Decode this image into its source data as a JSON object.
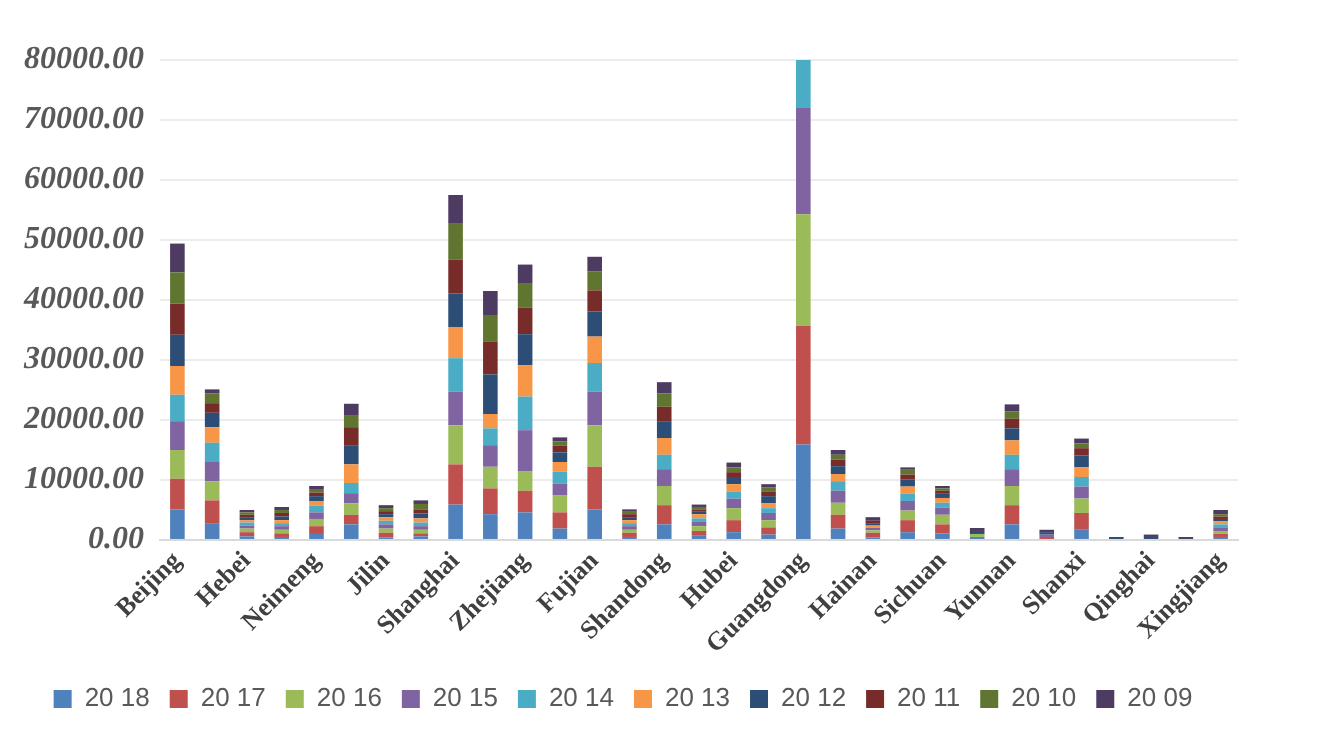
{
  "chart_data": {
    "type": "bar",
    "stacked": true,
    "categories": [
      "Beijing",
      null,
      "Hebei",
      null,
      "Neimeng",
      null,
      "Jilin",
      null,
      "Shanghai",
      null,
      "Zhejiang",
      null,
      "Fujian",
      null,
      "Shandong",
      null,
      "Hubei",
      null,
      "Guangdong",
      null,
      "Hainan",
      null,
      "Sichuan",
      null,
      "Yunnan",
      null,
      "Shanxi",
      null,
      "Qinghai",
      null,
      "Xingjiang"
    ],
    "series": [
      {
        "name": "20 18",
        "color": "#4f81bd",
        "values": [
          5100,
          2700,
          600,
          500,
          1000,
          2600,
          400,
          600,
          5900,
          4300,
          4600,
          1900,
          5100,
          500,
          2600,
          700,
          1300,
          900,
          15900,
          1900,
          400,
          1300,
          1100,
          500,
          2600,
          null,
          1700,
          null,
          null,
          null,
          500
        ]
      },
      {
        "name": "20 17",
        "color": "#c0504d",
        "values": [
          5100,
          3900,
          700,
          600,
          1300,
          1600,
          800,
          500,
          6700,
          4300,
          3600,
          2700,
          7100,
          700,
          3200,
          800,
          2000,
          1200,
          19800,
          2300,
          800,
          2000,
          1500,
          null,
          3200,
          500,
          2800,
          null,
          null,
          null,
          500
        ]
      },
      {
        "name": "20 16",
        "color": "#9bbb59",
        "values": [
          4800,
          3200,
          600,
          600,
          1200,
          1900,
          700,
          600,
          6500,
          3600,
          3200,
          2800,
          6900,
          500,
          3200,
          800,
          2000,
          1200,
          18600,
          2000,
          400,
          1600,
          1600,
          500,
          3200,
          null,
          2400,
          null,
          null,
          null,
          500
        ]
      },
      {
        "name": "20 15",
        "color": "#8064a2",
        "values": [
          4800,
          3200,
          500,
          600,
          1100,
          1700,
          700,
          600,
          5600,
          3600,
          6900,
          2000,
          5600,
          600,
          2800,
          800,
          1600,
          1200,
          17700,
          2000,
          400,
          1600,
          1200,
          null,
          2800,
          400,
          2000,
          null,
          null,
          null,
          500
        ]
      },
      {
        "name": "20 14",
        "color": "#4bacc6",
        "values": [
          4400,
          3200,
          500,
          500,
          1100,
          1700,
          600,
          600,
          5600,
          2800,
          5600,
          2000,
          4800,
          500,
          2400,
          500,
          1200,
          800,
          8000,
          1600,
          null,
          1200,
          800,
          null,
          2400,
          null,
          1600,
          null,
          null,
          null,
          600
        ]
      },
      {
        "name": "20 13",
        "color": "#f79646",
        "values": [
          4800,
          2600,
          400,
          500,
          800,
          3100,
          600,
          700,
          5200,
          2400,
          5200,
          1600,
          4400,
          500,
          2800,
          700,
          1200,
          800,
          null,
          1200,
          400,
          1200,
          800,
          null,
          2400,
          null,
          1600,
          null,
          null,
          null,
          500
        ]
      },
      {
        "name": "20 12",
        "color": "#2c4d75",
        "values": [
          5200,
          2400,
          500,
          600,
          800,
          3200,
          500,
          800,
          5600,
          6600,
          5200,
          1600,
          4200,
          500,
          2800,
          400,
          1200,
          1200,
          null,
          1300,
          400,
          1200,
          800,
          500,
          2000,
          400,
          2000,
          500,
          500,
          null,
          400
        ]
      },
      {
        "name": "20 11",
        "color": "#772c2a",
        "values": [
          5200,
          1600,
          400,
          600,
          600,
          3000,
          500,
          700,
          5600,
          5500,
          4400,
          1100,
          3500,
          500,
          2400,
          400,
          800,
          800,
          null,
          1100,
          400,
          800,
          400,
          null,
          1600,
          null,
          1200,
          null,
          null,
          null,
          400
        ]
      },
      {
        "name": "20 10",
        "color": "#5f7530",
        "values": [
          5200,
          1600,
          400,
          500,
          600,
          1900,
          500,
          900,
          6000,
          4400,
          4000,
          700,
          3200,
          400,
          2200,
          400,
          800,
          700,
          null,
          800,
          null,
          800,
          400,
          null,
          1200,
          null,
          800,
          null,
          null,
          null,
          400
        ]
      },
      {
        "name": "20 09",
        "color": "#4d3b62",
        "values": [
          4800,
          700,
          400,
          500,
          500,
          2000,
          500,
          600,
          4800,
          4000,
          3200,
          700,
          2400,
          400,
          1900,
          400,
          800,
          500,
          null,
          800,
          600,
          400,
          400,
          500,
          1200,
          400,
          800,
          null,
          400,
          500,
          700
        ]
      }
    ],
    "ylim": [
      0,
      80000
    ],
    "yticks": [
      {
        "value": 0,
        "label": "0.00"
      },
      {
        "value": 10000,
        "label": "10000.00"
      },
      {
        "value": 20000,
        "label": "20000.00"
      },
      {
        "value": 30000,
        "label": "30000.00"
      },
      {
        "value": 40000,
        "label": "40000.00"
      },
      {
        "value": 50000,
        "label": "50000.00"
      },
      {
        "value": 60000,
        "label": "60000.00"
      },
      {
        "value": 70000,
        "label": "70000.00"
      },
      {
        "value": 80000,
        "label": "80000.00"
      }
    ],
    "grid": "y",
    "legend": "bottom"
  }
}
